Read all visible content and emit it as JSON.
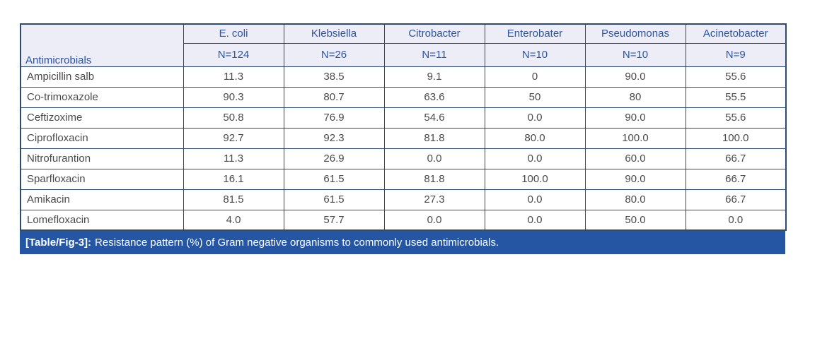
{
  "table": {
    "corner_label": "Antimicrobials",
    "columns": [
      {
        "organism": "E. coli",
        "count": "N=124"
      },
      {
        "organism": "Klebsiella",
        "count": "N=26"
      },
      {
        "organism": "Citrobacter",
        "count": "N=11"
      },
      {
        "organism": "Enterobater",
        "count": "N=10"
      },
      {
        "organism": "Pseudomonas",
        "count": "N=10"
      },
      {
        "organism": "Acinetobacter",
        "count": "N=9"
      }
    ],
    "rows": [
      {
        "label": "Ampicillin salb",
        "values": [
          "11.3",
          "38.5",
          "9.1",
          "0",
          "90.0",
          "55.6"
        ]
      },
      {
        "label": "Co-trimoxazole",
        "values": [
          "90.3",
          "80.7",
          "63.6",
          "50",
          "80",
          "55.5"
        ]
      },
      {
        "label": "Ceftizoxime",
        "values": [
          "50.8",
          "76.9",
          "54.6",
          "0.0",
          "90.0",
          "55.6"
        ]
      },
      {
        "label": "Ciprofloxacin",
        "values": [
          "92.7",
          "92.3",
          "81.8",
          "80.0",
          "100.0",
          "100.0"
        ]
      },
      {
        "label": "Nitrofurantion",
        "values": [
          "11.3",
          "26.9",
          "0.0",
          "0.0",
          "60.0",
          "66.7"
        ]
      },
      {
        "label": "Sparfloxacin",
        "values": [
          "16.1",
          "61.5",
          "81.8",
          "100.0",
          "90.0",
          "66.7"
        ]
      },
      {
        "label": "Amikacin",
        "values": [
          "81.5",
          "61.5",
          "27.3",
          "0.0",
          "80.0",
          "66.7"
        ]
      },
      {
        "label": "Lomefloxacin",
        "values": [
          "4.0",
          "57.7",
          "0.0",
          "0.0",
          "50.0",
          "0.0"
        ]
      }
    ]
  },
  "caption": {
    "prefix": "[Table/Fig-3]:",
    "text": "Resistance pattern (%) of Gram negative organisms to commonly used antimicrobials."
  },
  "colors": {
    "header_bg": "#ECEDF7",
    "header_text": "#2B54A4",
    "border": "#2C4A72",
    "body_text": "#4A4A4A",
    "caption_bg": "#2456A4",
    "caption_text": "#FFFFFF",
    "page_bg": "#FFFFFF"
  }
}
